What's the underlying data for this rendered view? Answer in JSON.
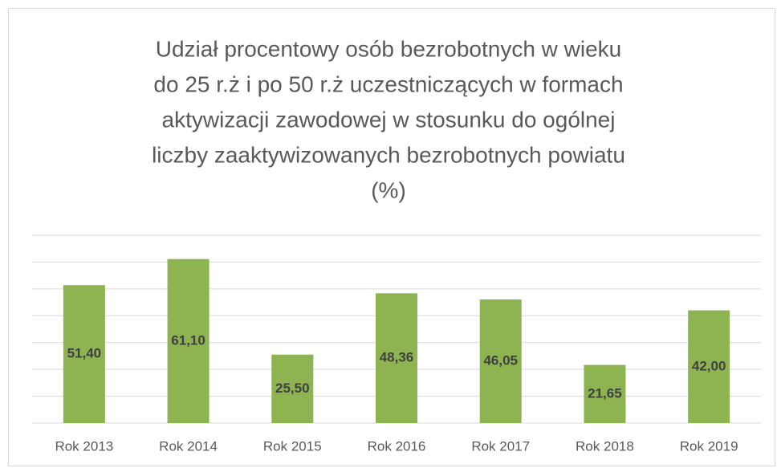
{
  "chart_data": {
    "type": "bar",
    "title": [
      "Udział procentowy osób bezrobotnych w wieku",
      "do 25 r.ż i po 50 r.ż uczestniczących w formach",
      "aktywizacji zawodowej w stosunku do ogólnej",
      "liczby zaaktywizowanych bezrobotnych powiatu",
      "(%)"
    ],
    "categories": [
      "Rok 2013",
      "Rok 2014",
      "Rok 2015",
      "Rok 2016",
      "Rok 2017",
      "Rok 2018",
      "Rok 2019"
    ],
    "values": [
      51.4,
      61.1,
      25.5,
      48.36,
      46.05,
      21.65,
      42.0
    ],
    "value_labels": [
      "51,40",
      "61,10",
      "25,50",
      "48,36",
      "46,05",
      "21,65",
      "42,00"
    ],
    "color": "#8db450",
    "ylim": [
      0,
      70
    ],
    "yticks": [
      0,
      10,
      20,
      30,
      40,
      50,
      60,
      70
    ],
    "grid": true,
    "show_ytick_labels": false
  }
}
